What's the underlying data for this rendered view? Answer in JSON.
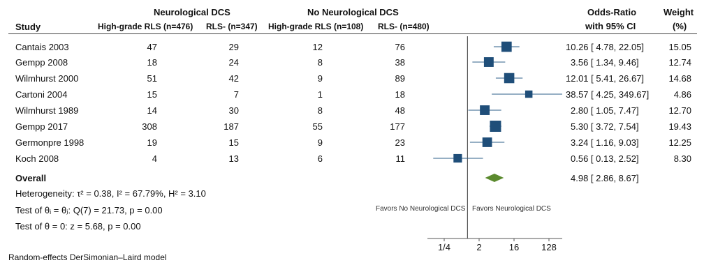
{
  "header": {
    "study": "Study",
    "group1": "Neurological DCS",
    "group2": "No Neurological DCS",
    "g1_col1": "High-grade RLS (n=476)",
    "g1_col2": "RLS- (n=347)",
    "g2_col1": "High-grade RLS (n=108)",
    "g2_col2": "RLS- (n=480)",
    "or_title": "Odds-Ratio",
    "or_sub": "with 95% CI",
    "weight_title": "Weight",
    "weight_sub": "(%)"
  },
  "rows": [
    {
      "study": "Cantais 2003",
      "a": "47",
      "b": "29",
      "c": "12",
      "d": "76",
      "ci_text": "10.26 [ 4.78,    22.05]",
      "weight": "15.05"
    },
    {
      "study": "Gempp 2008",
      "a": "18",
      "b": "24",
      "c": "8",
      "d": "38",
      "ci_text": "3.56 [ 1.34,     9.46]",
      "weight": "12.74"
    },
    {
      "study": "Wilmhurst 2000",
      "a": "51",
      "b": "42",
      "c": "9",
      "d": "89",
      "ci_text": "12.01 [ 5.41,    26.67]",
      "weight": "14.68"
    },
    {
      "study": "Cartoni 2004",
      "a": "15",
      "b": "7",
      "c": "1",
      "d": "18",
      "ci_text": "38.57 [ 4.25, 349.67]",
      "weight": "4.86"
    },
    {
      "study": "Wilmhurst 1989",
      "a": "14",
      "b": "30",
      "c": "8",
      "d": "48",
      "ci_text": "2.80 [ 1.05,     7.47]",
      "weight": "12.70"
    },
    {
      "study": "Gempp 2017",
      "a": "308",
      "b": "187",
      "c": "55",
      "d": "177",
      "ci_text": "5.30 [ 3.72,     7.54]",
      "weight": "19.43"
    },
    {
      "study": "Germonpre 1998",
      "a": "19",
      "b": "15",
      "c": "9",
      "d": "23",
      "ci_text": "3.24 [ 1.16,     9.03]",
      "weight": "12.25"
    },
    {
      "study": "Koch  2008",
      "a": "4",
      "b": "13",
      "c": "6",
      "d": "11",
      "ci_text": "0.56 [ 0.13,     2.52]",
      "weight": "8.30"
    }
  ],
  "overall": {
    "label": "Overall",
    "ci_text": "4.98 [ 2.86,     8.67]"
  },
  "stats": {
    "heterogeneity": "Heterogeneity: τ² = 0.38, I² = 67.79%, H² = 3.10",
    "test_equal": "Test of θᵢ = θⱼ: Q(7) = 21.73, p = 0.00",
    "test_zero": "Test of θ = 0: z = 5.68, p = 0.00"
  },
  "favors_left": "Favors No Neurological DCS",
  "favors_right": "Favors Neurological DCS",
  "footer": "Random-effects DerSimonian–Laird model",
  "chart_data": {
    "type": "scatter",
    "subtype": "forest",
    "x_scale": "log2",
    "xlim": [
      0.125,
      200
    ],
    "null_line": 1,
    "x_ticks": [
      0.25,
      2,
      16,
      128
    ],
    "x_tick_labels": [
      "1/4",
      "2",
      "16",
      "128"
    ],
    "studies": [
      {
        "label": "Cantais 2003",
        "or": 10.26,
        "lo": 4.78,
        "hi": 22.05,
        "weight": 15.05
      },
      {
        "label": "Gempp 2008",
        "or": 3.56,
        "lo": 1.34,
        "hi": 9.46,
        "weight": 12.74
      },
      {
        "label": "Wilmhurst 2000",
        "or": 12.01,
        "lo": 5.41,
        "hi": 26.67,
        "weight": 14.68
      },
      {
        "label": "Cartoni 2004",
        "or": 38.57,
        "lo": 4.25,
        "hi": 349.67,
        "weight": 4.86
      },
      {
        "label": "Wilmhurst 1989",
        "or": 2.8,
        "lo": 1.05,
        "hi": 7.47,
        "weight": 12.7
      },
      {
        "label": "Gempp 2017",
        "or": 5.3,
        "lo": 3.72,
        "hi": 7.54,
        "weight": 19.43
      },
      {
        "label": "Germonpre 1998",
        "or": 3.24,
        "lo": 1.16,
        "hi": 9.03,
        "weight": 12.25
      },
      {
        "label": "Koch  2008",
        "or": 0.56,
        "lo": 0.13,
        "hi": 2.52,
        "weight": 8.3
      }
    ],
    "overall": {
      "label": "Overall",
      "or": 4.98,
      "lo": 2.86,
      "hi": 8.67
    },
    "colors": {
      "marker": "#1f4e79",
      "ci_line": "#2e5f8a",
      "diamond": "#5b8a2e",
      "axis": "#555555",
      "divider": "#333333"
    }
  }
}
